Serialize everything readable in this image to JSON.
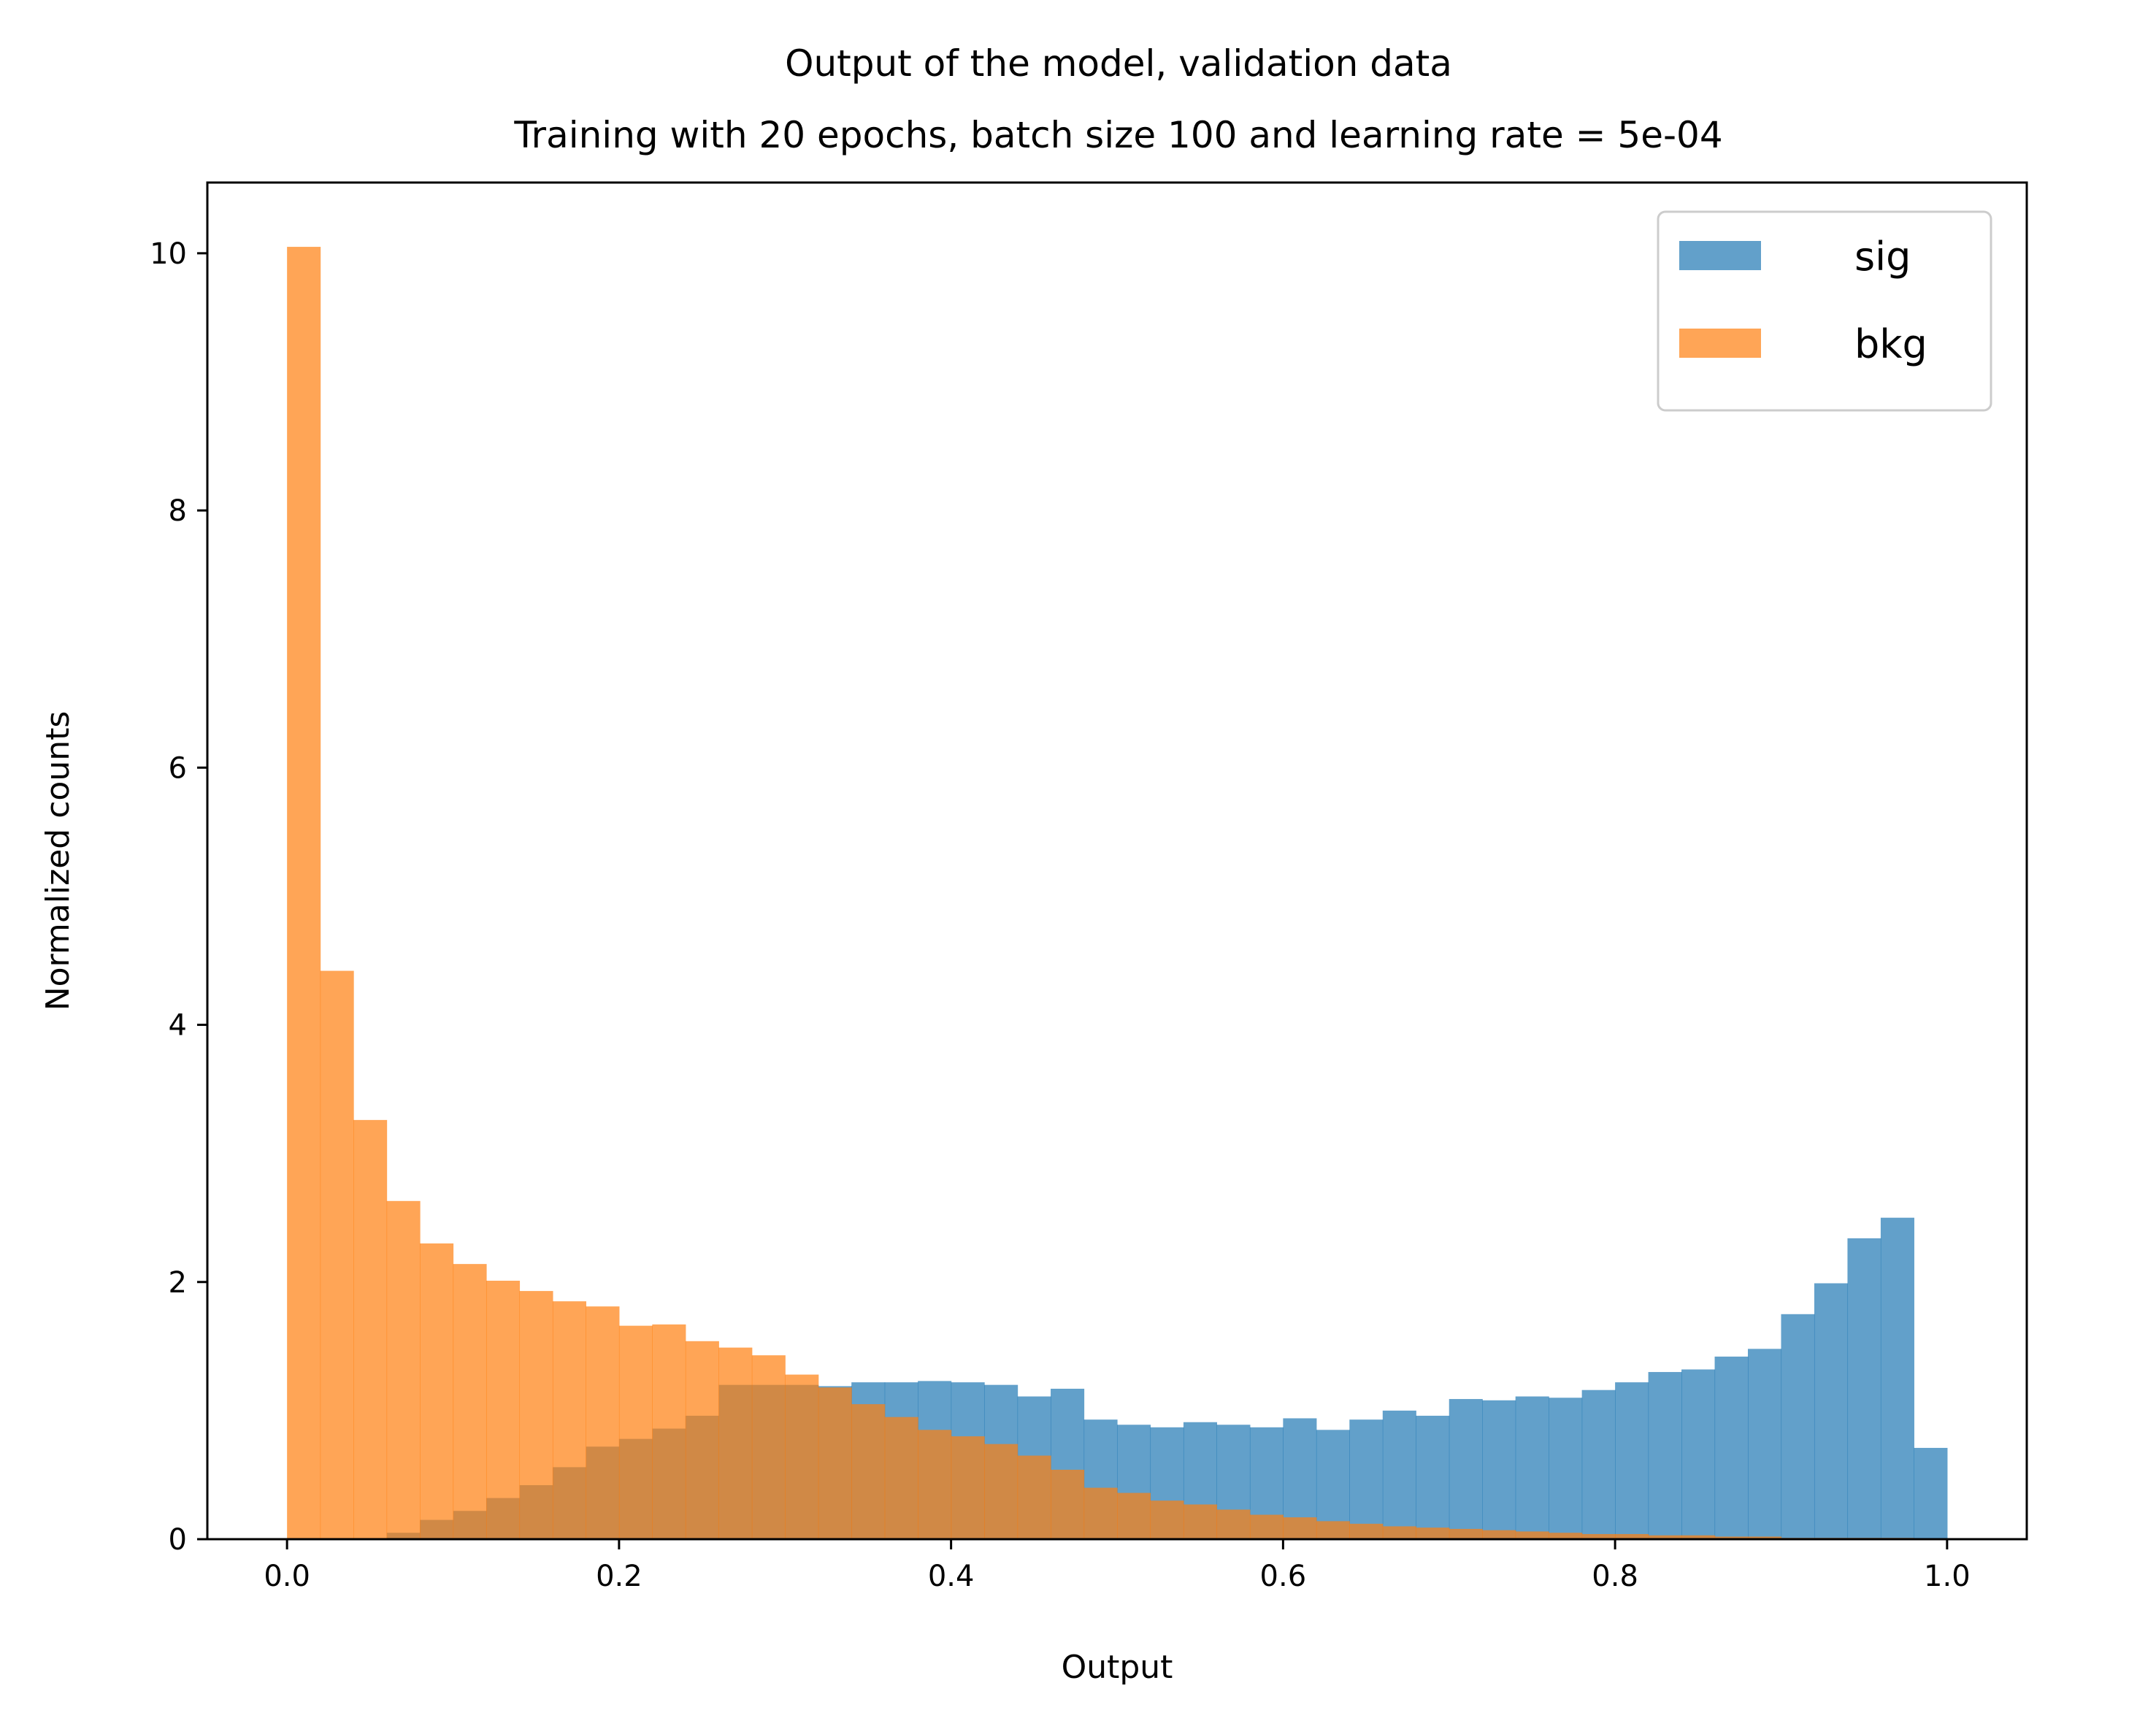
{
  "chart_data": {
    "type": "bar",
    "title": "Output of the model, validation data",
    "subtitle": "Training with 20 epochs, batch size 100 and learning rate = 5e-04",
    "xlabel": "Output",
    "ylabel": "Normalized counts",
    "xlim": [
      -0.048,
      1.048
    ],
    "ylim": [
      0,
      10.55
    ],
    "xticks": [
      0.0,
      0.2,
      0.4,
      0.6,
      0.8,
      1.0
    ],
    "xtick_labels": [
      "0.0",
      "0.2",
      "0.4",
      "0.6",
      "0.8",
      "1.0"
    ],
    "yticks": [
      0,
      2,
      4,
      6,
      8,
      10
    ],
    "ytick_labels": [
      "0",
      "2",
      "4",
      "6",
      "8",
      "10"
    ],
    "grid": false,
    "legend_position": "top-right",
    "bins": 50,
    "bin_range": [
      0.0,
      1.0
    ],
    "series": [
      {
        "name": "sig",
        "color": "#1f77b4",
        "alpha": 0.7,
        "values": [
          0.0,
          0.0,
          0.0,
          0.05,
          0.15,
          0.22,
          0.32,
          0.42,
          0.56,
          0.72,
          0.78,
          0.86,
          0.96,
          1.2,
          1.2,
          1.2,
          1.19,
          1.22,
          1.22,
          1.23,
          1.22,
          1.2,
          1.11,
          1.17,
          0.93,
          0.89,
          0.87,
          0.91,
          0.89,
          0.87,
          0.94,
          0.85,
          0.93,
          1.0,
          0.96,
          1.09,
          1.08,
          1.11,
          1.1,
          1.16,
          1.22,
          1.3,
          1.32,
          1.42,
          1.48,
          1.75,
          1.99,
          2.34,
          2.5,
          0.71
        ]
      },
      {
        "name": "bkg",
        "color": "#ff7f0e",
        "alpha": 0.7,
        "values": [
          10.05,
          4.42,
          3.26,
          2.63,
          2.3,
          2.14,
          2.01,
          1.93,
          1.85,
          1.81,
          1.66,
          1.67,
          1.54,
          1.49,
          1.43,
          1.28,
          1.18,
          1.05,
          0.95,
          0.85,
          0.8,
          0.74,
          0.65,
          0.54,
          0.4,
          0.36,
          0.3,
          0.27,
          0.23,
          0.19,
          0.17,
          0.14,
          0.12,
          0.1,
          0.09,
          0.08,
          0.07,
          0.06,
          0.05,
          0.04,
          0.04,
          0.03,
          0.03,
          0.02,
          0.02,
          0.01,
          0.01,
          0.01,
          0.01,
          0.0
        ]
      }
    ]
  }
}
